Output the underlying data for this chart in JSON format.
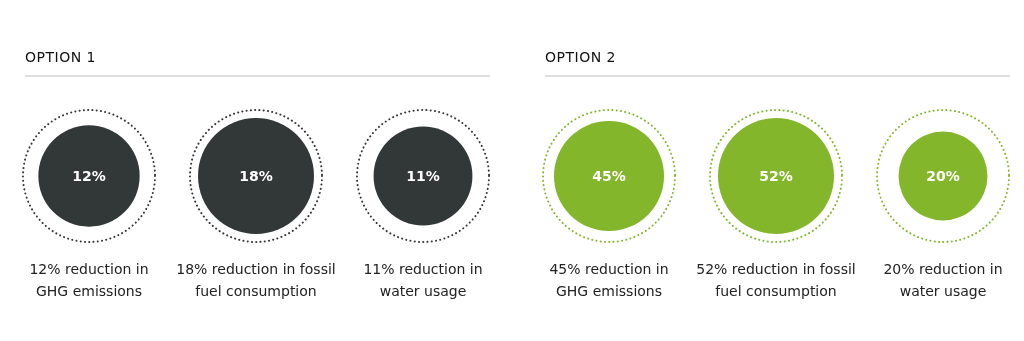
{
  "chart_data": [
    {
      "type": "other",
      "title": "OPTION 1",
      "categories": [
        "12% reduction in\nGHG emissions",
        "18% reduction in fossil\nfuel consumption",
        "11% reduction in\nwater usage"
      ],
      "values": [
        12,
        18,
        11
      ],
      "value_labels": [
        "12%",
        "18%",
        "11%"
      ],
      "color": "#323738"
    },
    {
      "type": "other",
      "title": "OPTION 2",
      "categories": [
        "45% reduction in\nGHG emissions",
        "52% reduction in fossil\nfuel consumption",
        "20% reduction in\nwater usage"
      ],
      "values": [
        45,
        52,
        20
      ],
      "value_labels": [
        "45%",
        "52%",
        "20%"
      ],
      "color": "#84b62b"
    }
  ]
}
